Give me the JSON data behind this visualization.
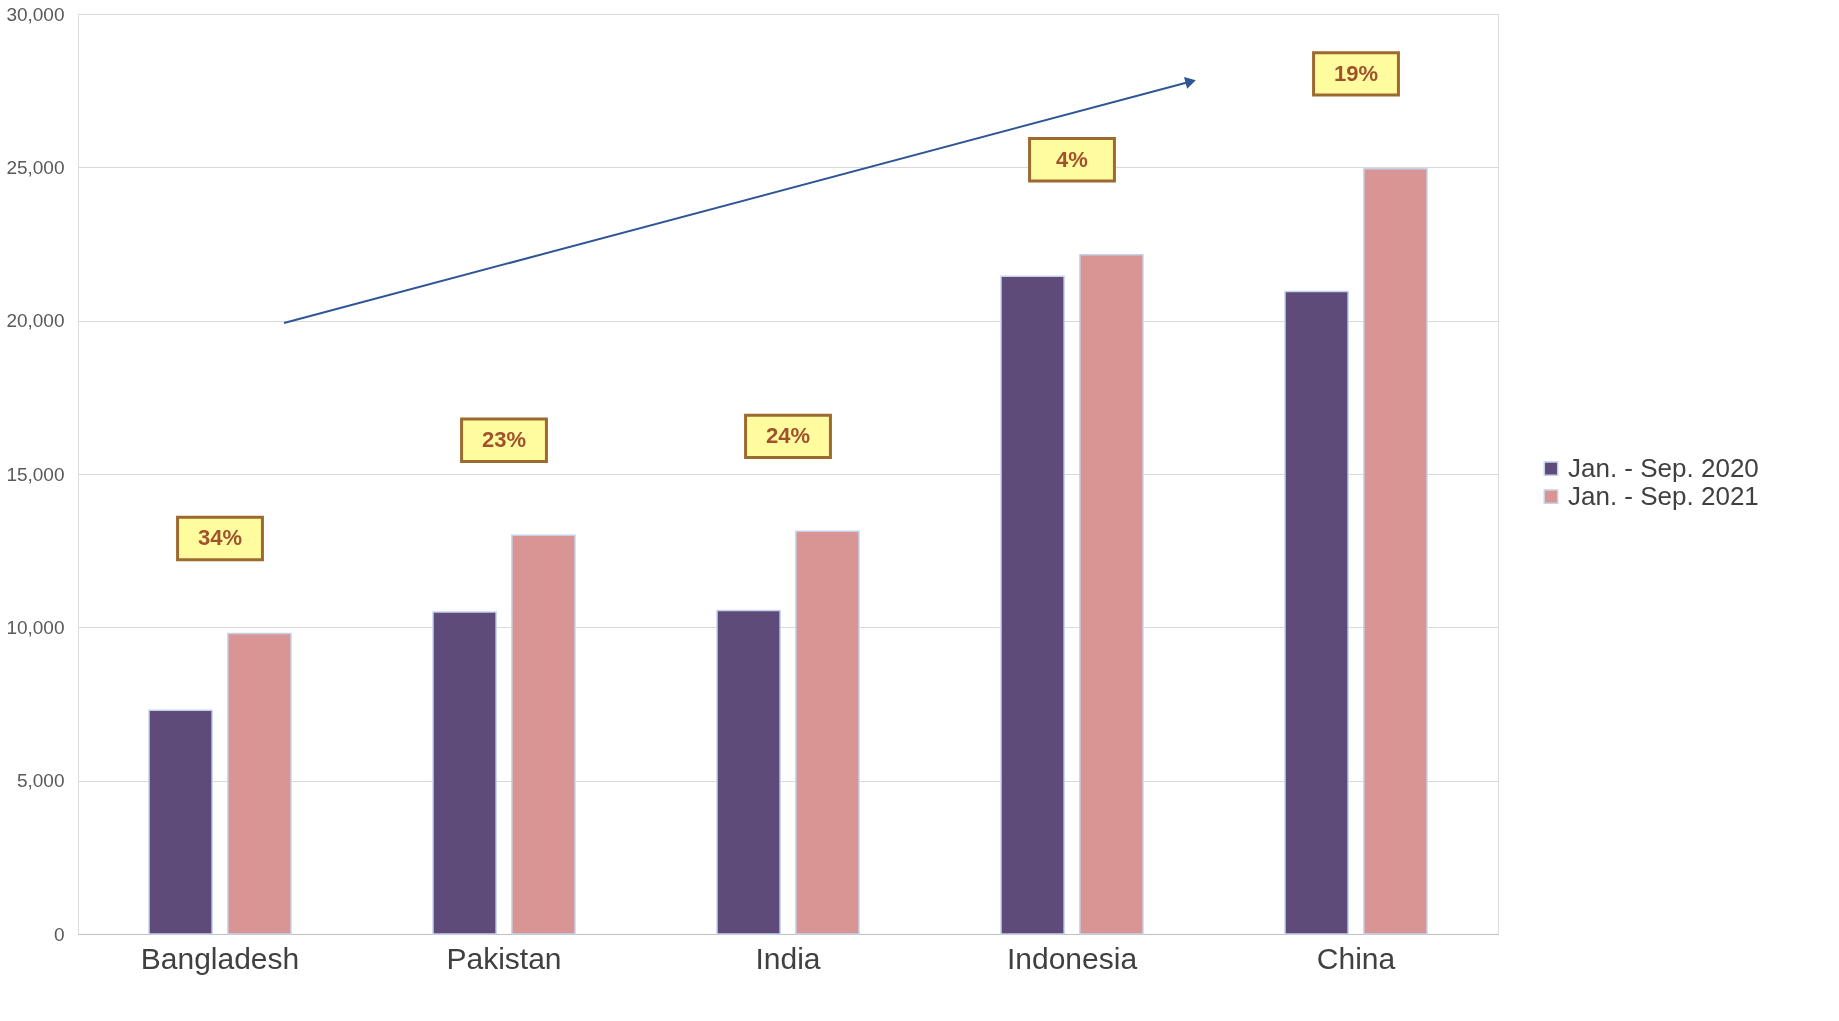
{
  "chart_data": {
    "type": "bar",
    "categories": [
      "Bangladesh",
      "Pakistan",
      "India",
      "Indonesia",
      "China"
    ],
    "series": [
      {
        "name": "Jan. - Sep. 2020",
        "color": "#5e4b7a",
        "values": [
          7300,
          10500,
          10550,
          21450,
          20950
        ]
      },
      {
        "name": "Jan. - Sep. 2021",
        "color": "#d99593",
        "values": [
          9800,
          13000,
          13130,
          22150,
          24950
        ]
      }
    ],
    "ylim": [
      0,
      30000
    ],
    "yticks": [
      0,
      {
        "value": 5000,
        "label": "5,000"
      },
      {
        "value": 10000,
        "label": "10,000"
      },
      {
        "value": 15000,
        "label": "15,000"
      },
      {
        "value": 20000,
        "label": "20,000"
      },
      {
        "value": 25000,
        "label": "25,000"
      },
      {
        "value": 30000,
        "label": "30,000"
      }
    ],
    "grid": "y",
    "legend": "right",
    "annotations": [
      "34%",
      "23%",
      "24%",
      "4%",
      "19%"
    ]
  }
}
